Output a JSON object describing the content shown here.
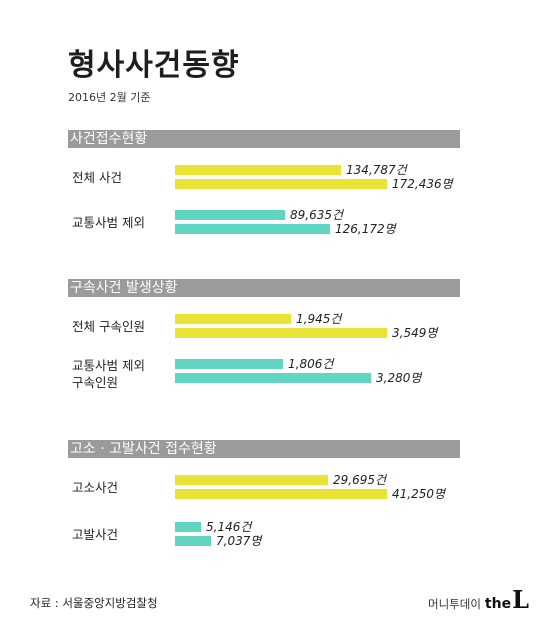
{
  "title": "형사사건동향",
  "subtitle": "2016년 2월 기준",
  "chart_data": [
    {
      "type": "bar",
      "title": "사건접수현황",
      "colors": {
        "case": "#e9e336",
        "person": "#e9e336"
      },
      "groups": [
        {
          "label": "전체 사건",
          "color": "#e9e336",
          "values": [
            134787,
            172436
          ],
          "labels": [
            "134,787건",
            "172,436명"
          ]
        },
        {
          "label": "교통사범 제외",
          "color": "#5fd5c2",
          "values": [
            89635,
            126172
          ],
          "labels": [
            "89,635건",
            "126,172명"
          ]
        }
      ]
    },
    {
      "type": "bar",
      "title": "구속사건 발생상황",
      "groups": [
        {
          "label": "전체 구속인원",
          "color": "#e9e336",
          "values": [
            1945,
            3549
          ],
          "labels": [
            "1,945건",
            "3,549명"
          ]
        },
        {
          "label": "교통사범 제외\n구속인원",
          "color": "#5fd5c2",
          "values": [
            1806,
            3280
          ],
          "labels": [
            "1,806건",
            "3,280명"
          ]
        }
      ]
    },
    {
      "type": "bar",
      "title": "고소 · 고발사건 접수현황",
      "groups": [
        {
          "label": "고소사건",
          "color": "#e9e336",
          "values": [
            29695,
            41250
          ],
          "labels": [
            "29,695건",
            "41,250명"
          ]
        },
        {
          "label": "고발사건",
          "color": "#5fd5c2",
          "values": [
            5146,
            7037
          ],
          "labels": [
            "5,146건",
            "7,037명"
          ]
        }
      ]
    }
  ],
  "source": "자료 : 서울중앙지방검찰청",
  "logo": {
    "brand": "머니투데이",
    "the": "the",
    "l": "L"
  }
}
